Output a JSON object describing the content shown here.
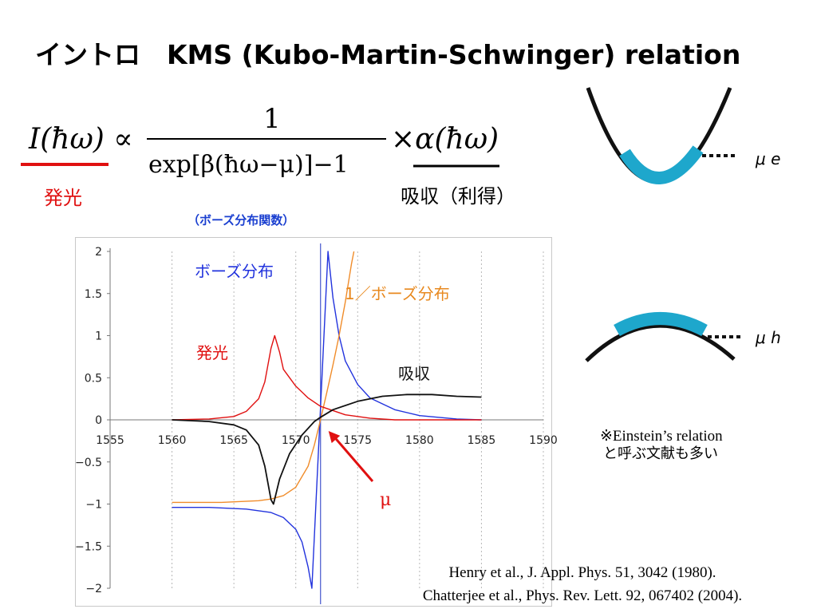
{
  "title": "イントロ　KMS (Kubo-Martin-Schwinger) relation",
  "formula": {
    "lhs": "I(ħω) ∝",
    "numerator": "1",
    "denominator": "exp[β(ħω−μ)]−1",
    "rhs": "×α(ħω)",
    "emission_label": "発光",
    "absorption_label": "吸収（利得）",
    "bose_note": "（ボーズ分布関数）"
  },
  "bands": {
    "electron_label": "μ e",
    "hole_label": "μ h",
    "band_color": "#1ea7cc"
  },
  "einstein_note": {
    "line1": "※Einstein’s relation",
    "line2": "と呼ぶ文献も多い"
  },
  "references": [
    "Henry et al., J. Appl. Phys. 51, 3042 (1980).",
    "Chatterjee et al., Phys. Rev. Lett. 92, 067402 (2004)."
  ],
  "chart_data": {
    "type": "line",
    "xlim": [
      1555,
      1590
    ],
    "ylim": [
      -2,
      2
    ],
    "x_ticks": [
      "1555",
      "1560",
      "1565",
      "1570",
      "1575",
      "1580",
      "1585",
      "1590"
    ],
    "y_ticks": [
      "2",
      "1.5",
      "1",
      "0.5",
      "0",
      "−0.5",
      "−1",
      "−1.5",
      "−2"
    ],
    "vertical_gridlines_dotted": true,
    "mu_x": 1572,
    "mu_label": "μ",
    "series": [
      {
        "name": "ボーズ分布",
        "color": "#2233dd",
        "points": [
          [
            1560,
            -1.04
          ],
          [
            1563,
            -1.04
          ],
          [
            1566,
            -1.06
          ],
          [
            1568,
            -1.1
          ],
          [
            1569,
            -1.16
          ],
          [
            1570,
            -1.3
          ],
          [
            1570.5,
            -1.45
          ],
          [
            1571,
            -1.75
          ],
          [
            1571.3,
            -2.0
          ],
          [
            1572.6,
            2.0
          ],
          [
            1573,
            1.45
          ],
          [
            1573.5,
            1.0
          ],
          [
            1574,
            0.7
          ],
          [
            1575,
            0.42
          ],
          [
            1576,
            0.26
          ],
          [
            1578,
            0.12
          ],
          [
            1580,
            0.05
          ],
          [
            1583,
            0.01
          ],
          [
            1585,
            0.0
          ]
        ]
      },
      {
        "name": "1／ボーズ分布",
        "color": "#f08c2a",
        "points": [
          [
            1560,
            -0.98
          ],
          [
            1564,
            -0.98
          ],
          [
            1567,
            -0.96
          ],
          [
            1568,
            -0.94
          ],
          [
            1569,
            -0.9
          ],
          [
            1570,
            -0.8
          ],
          [
            1571,
            -0.55
          ],
          [
            1571.5,
            -0.3
          ],
          [
            1572,
            0.0
          ],
          [
            1572.5,
            0.32
          ],
          [
            1573,
            0.65
          ],
          [
            1573.5,
            1.0
          ],
          [
            1574,
            1.4
          ],
          [
            1574.5,
            1.85
          ],
          [
            1574.7,
            2.0
          ]
        ]
      },
      {
        "name": "発光",
        "color": "#e01010",
        "points": [
          [
            1560,
            0.0
          ],
          [
            1563,
            0.01
          ],
          [
            1565,
            0.04
          ],
          [
            1566,
            0.1
          ],
          [
            1567,
            0.25
          ],
          [
            1567.5,
            0.45
          ],
          [
            1568,
            0.85
          ],
          [
            1568.3,
            1.0
          ],
          [
            1568.7,
            0.8
          ],
          [
            1569,
            0.6
          ],
          [
            1570,
            0.4
          ],
          [
            1571,
            0.26
          ],
          [
            1572,
            0.16
          ],
          [
            1574,
            0.06
          ],
          [
            1576,
            0.02
          ],
          [
            1578,
            0.0
          ],
          [
            1585,
            0.0
          ]
        ]
      },
      {
        "name": "吸収",
        "color": "#111111",
        "points": [
          [
            1560,
            0.0
          ],
          [
            1563,
            -0.02
          ],
          [
            1565,
            -0.06
          ],
          [
            1566,
            -0.12
          ],
          [
            1567,
            -0.3
          ],
          [
            1567.5,
            -0.55
          ],
          [
            1568,
            -0.95
          ],
          [
            1568.2,
            -1.0
          ],
          [
            1568.7,
            -0.7
          ],
          [
            1569.5,
            -0.4
          ],
          [
            1570.5,
            -0.18
          ],
          [
            1571.5,
            -0.02
          ],
          [
            1572,
            0.03
          ],
          [
            1573,
            0.12
          ],
          [
            1575,
            0.22
          ],
          [
            1577,
            0.28
          ],
          [
            1579,
            0.3
          ],
          [
            1581,
            0.3
          ],
          [
            1583,
            0.28
          ],
          [
            1585,
            0.27
          ]
        ]
      }
    ]
  }
}
